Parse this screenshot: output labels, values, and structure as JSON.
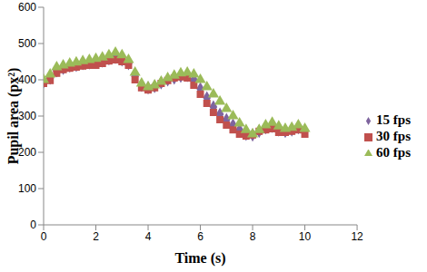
{
  "chart_data": {
    "type": "scatter",
    "x_label": "Time (s)",
    "y_label": "Pupil area (px²)",
    "x": [
      0,
      0.25,
      0.5,
      0.75,
      1,
      1.25,
      1.5,
      1.75,
      2,
      2.25,
      2.5,
      2.75,
      3,
      3.25,
      3.5,
      3.75,
      4,
      4.25,
      4.5,
      4.75,
      5,
      5.25,
      5.5,
      5.75,
      6,
      6.25,
      6.5,
      6.75,
      7,
      7.25,
      7.5,
      7.75,
      8,
      8.25,
      8.5,
      8.75,
      9,
      9.25,
      9.5,
      9.75,
      10
    ],
    "series": [
      {
        "name": "15 fps",
        "color": "#7e649e",
        "marker": "diamond",
        "values": [
          395,
          405,
          425,
          432,
          438,
          440,
          445,
          447,
          448,
          452,
          458,
          462,
          455,
          445,
          410,
          385,
          378,
          382,
          392,
          400,
          405,
          410,
          412,
          400,
          375,
          350,
          325,
          305,
          290,
          275,
          262,
          250,
          248,
          258,
          268,
          272,
          262,
          258,
          262,
          268,
          260
        ]
      },
      {
        "name": "30 fps",
        "color": "#c0504d",
        "marker": "square",
        "values": [
          390,
          398,
          418,
          428,
          432,
          435,
          438,
          440,
          440,
          445,
          452,
          455,
          450,
          440,
          400,
          378,
          372,
          378,
          390,
          398,
          405,
          408,
          405,
          385,
          360,
          335,
          310,
          290,
          275,
          262,
          250,
          245,
          248,
          258,
          262,
          265,
          255,
          255,
          258,
          262,
          250
        ]
      },
      {
        "name": "60 fps",
        "color": "#9bbb59",
        "marker": "triangle",
        "values": [
          400,
          415,
          435,
          440,
          445,
          448,
          452,
          455,
          458,
          462,
          468,
          475,
          468,
          455,
          420,
          390,
          380,
          385,
          395,
          405,
          412,
          418,
          420,
          415,
          400,
          380,
          360,
          340,
          320,
          300,
          280,
          262,
          250,
          262,
          275,
          282,
          272,
          265,
          268,
          275,
          265
        ]
      }
    ],
    "xlim": [
      0,
      12
    ],
    "xticks": [
      0,
      2,
      4,
      6,
      8,
      10,
      12
    ],
    "ylim": [
      0,
      600
    ],
    "yticks": [
      0,
      100,
      200,
      300,
      400,
      500,
      600
    ],
    "grid": false,
    "legend": "right"
  }
}
